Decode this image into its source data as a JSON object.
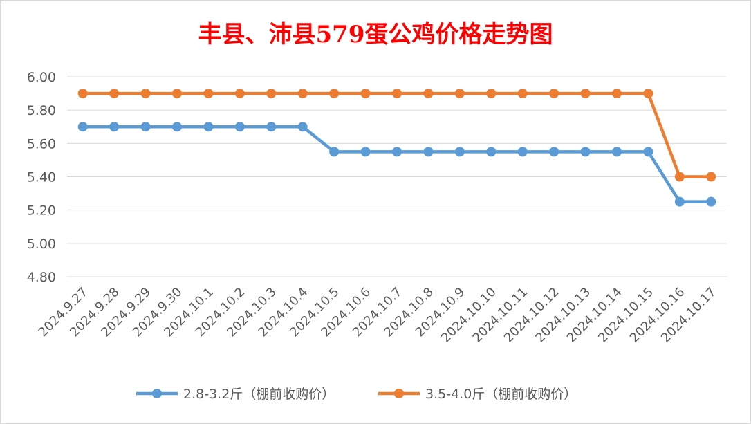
{
  "chart_data": {
    "type": "line",
    "title": "丰县、沛县579蛋公鸡价格走势图",
    "xlabel": "",
    "ylabel": "",
    "categories": [
      "2024.9.27",
      "2024.9.28",
      "2024.9.29",
      "2024.9.30",
      "2024.10.1",
      "2024.10.2",
      "2024.10.3",
      "2024.10.4",
      "2024.10.5",
      "2024.10.6",
      "2024.10.7",
      "2024.10.8",
      "2024.10.9",
      "2024.10.10",
      "2024.10.11",
      "2024.10.12",
      "2024.10.13",
      "2024.10.14",
      "2024.10.15",
      "2024.10.16",
      "2024.10.17"
    ],
    "ylim": [
      4.8,
      6.0
    ],
    "yticks": [
      "4.80",
      "5.00",
      "5.20",
      "5.40",
      "5.60",
      "5.80",
      "6.00"
    ],
    "grid": true,
    "legend_position": "bottom",
    "series": [
      {
        "name": "2.8-3.2斤（棚前收购价）",
        "color": "#5b9bd5",
        "values": [
          5.7,
          5.7,
          5.7,
          5.7,
          5.7,
          5.7,
          5.7,
          5.7,
          5.55,
          5.55,
          5.55,
          5.55,
          5.55,
          5.55,
          5.55,
          5.55,
          5.55,
          5.55,
          5.55,
          5.25,
          5.25
        ]
      },
      {
        "name": "3.5-4.0斤（棚前收购价）",
        "color": "#ed7d31",
        "values": [
          5.9,
          5.9,
          5.9,
          5.9,
          5.9,
          5.9,
          5.9,
          5.9,
          5.9,
          5.9,
          5.9,
          5.9,
          5.9,
          5.9,
          5.9,
          5.9,
          5.9,
          5.9,
          5.9,
          5.4,
          5.4
        ]
      }
    ]
  }
}
